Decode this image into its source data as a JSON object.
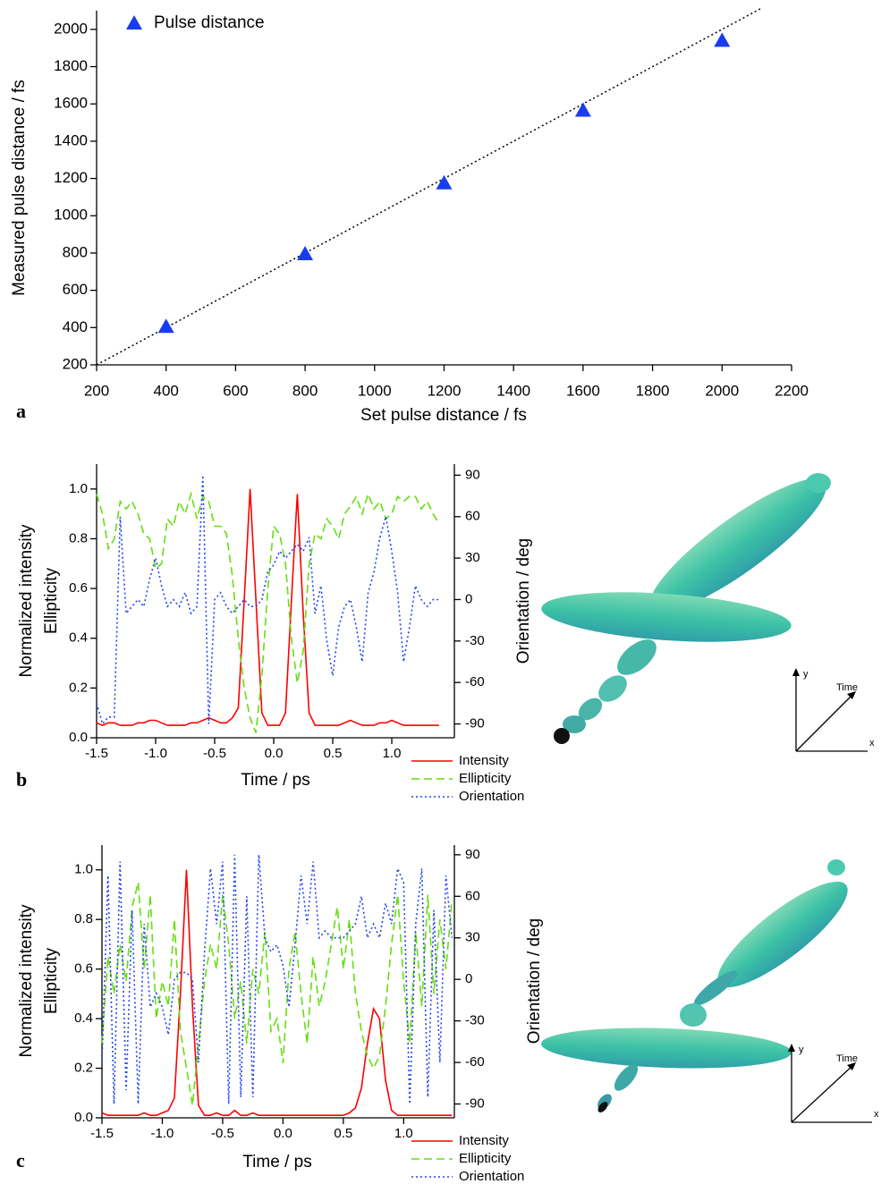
{
  "chart_data": [
    {
      "type": "scatter",
      "panel_label": "a",
      "xlabel": "Set pulse distance / fs",
      "ylabel": "Measured pulse distance / fs",
      "x": [
        400,
        800,
        1200,
        1600,
        2000
      ],
      "series": [
        {
          "name": "Pulse distance",
          "color": "#1a3cf0",
          "values": [
            405,
            795,
            1175,
            1565,
            1940
          ]
        }
      ],
      "reference_line": {
        "x": [
          200,
          2110
        ],
        "values": [
          200,
          2110
        ],
        "color": "#000000",
        "linestyle": "dotted"
      },
      "xlim": [
        200,
        2200
      ],
      "xticks": [
        200,
        400,
        600,
        800,
        1000,
        1200,
        1400,
        1600,
        1800,
        2000,
        2200
      ],
      "ylim": [
        200,
        2100
      ],
      "yticks": [
        200,
        400,
        600,
        800,
        1000,
        1200,
        1400,
        1600,
        1800,
        2000
      ],
      "legend": "upper left"
    },
    {
      "type": "line",
      "panel_label": "b",
      "xlabel": "Time / ps",
      "ylabel": [
        "Normalized intensity",
        "Ellipticity"
      ],
      "y2label": "Orientation / deg",
      "x": [
        -1.5,
        -1.45,
        -1.4,
        -1.35,
        -1.3,
        -1.25,
        -1.2,
        -1.15,
        -1.1,
        -1.05,
        -1.0,
        -0.95,
        -0.9,
        -0.85,
        -0.8,
        -0.75,
        -0.7,
        -0.65,
        -0.6,
        -0.55,
        -0.5,
        -0.45,
        -0.4,
        -0.35,
        -0.3,
        -0.25,
        -0.2,
        -0.15,
        -0.1,
        -0.05,
        0,
        0.05,
        0.1,
        0.15,
        0.2,
        0.25,
        0.3,
        0.35,
        0.4,
        0.45,
        0.5,
        0.55,
        0.6,
        0.65,
        0.7,
        0.75,
        0.8,
        0.85,
        0.9,
        0.95,
        1.0,
        1.05,
        1.1,
        1.15,
        1.2,
        1.25,
        1.3,
        1.35,
        1.4
      ],
      "series": [
        {
          "name": "Intensity",
          "color": "#ff0000",
          "linestyle": "solid",
          "values": [
            0.06,
            0.05,
            0.06,
            0.06,
            0.05,
            0.05,
            0.05,
            0.06,
            0.06,
            0.07,
            0.07,
            0.06,
            0.05,
            0.05,
            0.05,
            0.05,
            0.06,
            0.06,
            0.07,
            0.08,
            0.07,
            0.06,
            0.06,
            0.08,
            0.12,
            0.55,
            1.0,
            0.55,
            0.1,
            0.05,
            0.05,
            0.05,
            0.1,
            0.55,
            0.98,
            0.5,
            0.1,
            0.05,
            0.05,
            0.05,
            0.05,
            0.05,
            0.06,
            0.07,
            0.06,
            0.05,
            0.05,
            0.05,
            0.06,
            0.06,
            0.07,
            0.06,
            0.05,
            0.05,
            0.05,
            0.05,
            0.05,
            0.05,
            0.05
          ]
        },
        {
          "name": "Ellipticity",
          "color": "#66dd11",
          "linestyle": "dashed",
          "values": [
            0.98,
            0.9,
            0.76,
            0.8,
            0.95,
            0.92,
            0.95,
            0.9,
            0.82,
            0.8,
            0.68,
            0.7,
            0.88,
            0.85,
            0.95,
            0.9,
            0.98,
            0.88,
            0.97,
            0.95,
            0.85,
            0.85,
            0.82,
            0.65,
            0.4,
            0.2,
            0.08,
            0.02,
            0.25,
            0.6,
            0.85,
            0.82,
            0.7,
            0.4,
            0.22,
            0.35,
            0.7,
            0.82,
            0.8,
            0.88,
            0.85,
            0.8,
            0.9,
            0.93,
            0.97,
            0.9,
            0.98,
            0.92,
            0.95,
            0.88,
            0.9,
            0.97,
            0.95,
            0.97,
            0.97,
            0.92,
            0.95,
            0.9,
            0.86
          ]
        },
        {
          "name": "Orientation",
          "color": "#2244ee",
          "linestyle": "dotted",
          "axis": "y2",
          "values": [
            -75,
            -90,
            -85,
            -85,
            60,
            -10,
            -5,
            0,
            -5,
            15,
            30,
            10,
            -5,
            0,
            -5,
            5,
            -10,
            -5,
            90,
            -90,
            0,
            5,
            -5,
            -10,
            -5,
            0,
            -5,
            -5,
            0,
            20,
            25,
            35,
            30,
            35,
            40,
            35,
            45,
            -10,
            10,
            -30,
            -55,
            -20,
            -5,
            0,
            -20,
            -45,
            5,
            20,
            45,
            60,
            35,
            5,
            -45,
            -20,
            10,
            0,
            -5,
            0,
            0
          ]
        }
      ],
      "xlim": [
        -1.5,
        1.53
      ],
      "xticks": [
        -1.5,
        {
          "value": -1.0,
          "label": "-1.0"
        },
        -0.5,
        {
          "value": 0,
          "label": "0.0"
        },
        0.5,
        {
          "value": 1.0,
          "label": "1.0"
        }
      ],
      "ylim": [
        0,
        1.1
      ],
      "yticks": [
        {
          "value": 0,
          "label": "0.0"
        },
        0.2,
        0.4,
        0.6,
        0.8,
        {
          "value": 1.0,
          "label": "1.0"
        }
      ],
      "y2lim": [
        -100,
        98
      ],
      "y2ticks": [
        -90,
        -60,
        -30,
        0,
        30,
        60,
        90
      ],
      "inset_axis_labels": {
        "y": "y",
        "time": "Time",
        "x": "x"
      }
    },
    {
      "type": "line",
      "panel_label": "c",
      "xlabel": "Time / ps",
      "ylabel": [
        "Normalized intensity",
        "Ellipticity"
      ],
      "y2label": "Orientation / deg",
      "x": [
        -1.5,
        -1.45,
        -1.4,
        -1.35,
        -1.3,
        -1.25,
        -1.2,
        -1.15,
        -1.1,
        -1.05,
        -1.0,
        -0.95,
        -0.9,
        -0.85,
        -0.8,
        -0.75,
        -0.7,
        -0.65,
        -0.6,
        -0.55,
        -0.5,
        -0.45,
        -0.4,
        -0.35,
        -0.3,
        -0.25,
        -0.2,
        -0.15,
        -0.1,
        -0.05,
        0,
        0.05,
        0.1,
        0.15,
        0.2,
        0.25,
        0.3,
        0.35,
        0.4,
        0.45,
        0.5,
        0.55,
        0.6,
        0.65,
        0.7,
        0.75,
        0.8,
        0.85,
        0.9,
        0.95,
        1.0,
        1.05,
        1.1,
        1.15,
        1.2,
        1.25,
        1.3,
        1.35,
        1.4
      ],
      "series": [
        {
          "name": "Intensity",
          "color": "#ff0000",
          "linestyle": "solid",
          "values": [
            0.02,
            0.01,
            0.01,
            0.01,
            0.01,
            0.01,
            0.01,
            0.02,
            0.01,
            0.01,
            0.02,
            0.03,
            0.08,
            0.5,
            1.0,
            0.45,
            0.05,
            0.01,
            0.01,
            0.02,
            0.01,
            0.01,
            0.03,
            0.01,
            0.01,
            0.02,
            0.01,
            0.01,
            0.01,
            0.01,
            0.01,
            0.01,
            0.01,
            0.01,
            0.01,
            0.01,
            0.01,
            0.01,
            0.01,
            0.01,
            0.01,
            0.02,
            0.04,
            0.12,
            0.3,
            0.44,
            0.4,
            0.15,
            0.03,
            0.01,
            0.01,
            0.01,
            0.01,
            0.01,
            0.01,
            0.01,
            0.01,
            0.01,
            0.01
          ]
        },
        {
          "name": "Ellipticity",
          "color": "#66dd11",
          "linestyle": "dashed",
          "values": [
            0.3,
            0.65,
            0.5,
            0.7,
            0.55,
            0.85,
            0.95,
            0.6,
            0.9,
            0.4,
            0.55,
            0.45,
            0.8,
            0.35,
            0.2,
            0.05,
            0.3,
            0.55,
            0.7,
            0.6,
            0.9,
            0.7,
            0.4,
            0.55,
            0.3,
            0.6,
            0.5,
            0.75,
            0.35,
            0.4,
            0.22,
            0.6,
            0.75,
            0.5,
            0.3,
            0.65,
            0.45,
            0.55,
            0.7,
            0.85,
            0.6,
            0.8,
            0.5,
            0.35,
            0.25,
            0.2,
            0.25,
            0.45,
            0.7,
            0.9,
            0.55,
            0.3,
            0.75,
            0.45,
            0.9,
            0.5,
            0.8,
            0.6,
            0.88
          ]
        },
        {
          "name": "Orientation",
          "color": "#2244ee",
          "linestyle": "dotted",
          "axis": "y2",
          "values": [
            -60,
            75,
            -90,
            85,
            -80,
            50,
            -90,
            40,
            -20,
            -10,
            -20,
            -40,
            0,
            5,
            5,
            0,
            -60,
            20,
            80,
            40,
            85,
            -90,
            90,
            -85,
            60,
            -85,
            90,
            30,
            20,
            25,
            10,
            -20,
            25,
            75,
            40,
            85,
            30,
            35,
            30,
            30,
            30,
            35,
            40,
            60,
            30,
            40,
            30,
            55,
            40,
            80,
            70,
            -90,
            40,
            80,
            -85,
            50,
            -60,
            75,
            30
          ]
        }
      ],
      "xlim": [
        -1.5,
        1.42
      ],
      "xticks": [
        -1.5,
        {
          "value": -1.0,
          "label": "-1.0"
        },
        -0.5,
        {
          "value": 0,
          "label": "0.0"
        },
        0.5,
        {
          "value": 1.0,
          "label": "1.0"
        }
      ],
      "ylim": [
        0,
        1.1
      ],
      "yticks": [
        {
          "value": 0,
          "label": "0.0"
        },
        0.2,
        0.4,
        0.6,
        0.8,
        {
          "value": 1.0,
          "label": "1.0"
        }
      ],
      "y2lim": [
        -100,
        97
      ],
      "y2ticks": [
        -90,
        -60,
        -30,
        0,
        30,
        60,
        90
      ],
      "inset_axis_labels": {
        "y": "y",
        "time": "Time",
        "x": "x"
      }
    }
  ]
}
